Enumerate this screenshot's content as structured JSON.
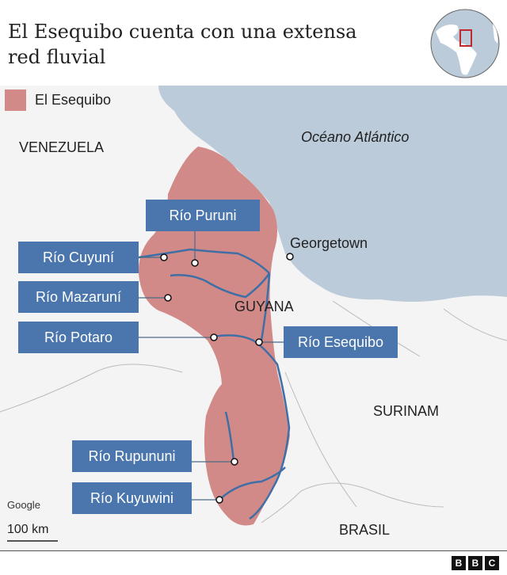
{
  "title": "El Esequibo cuenta con una extensa red fluvial",
  "legend": {
    "label": "El Esequibo",
    "color": "#d28a88"
  },
  "places": {
    "venezuela": "VENEZUELA",
    "ocean": "Océano Atlántico",
    "georgetown": "Georgetown",
    "guyana": "GUYANA",
    "surinam": "SURINAM",
    "brasil": "BRASIL"
  },
  "rivers": [
    "Río Puruni",
    "Río Cuyuní",
    "Río Mazaruní",
    "Río Potaro",
    "Río Esequibo",
    "Río Rupununi",
    "Río Kuyuwini"
  ],
  "attribution": "Google",
  "scale": "100 km",
  "brand": [
    "B",
    "B",
    "C"
  ],
  "colors": {
    "ocean": "#bccbd9",
    "region": "#d28a88",
    "label_box": "#4a76ad",
    "river": "#3f6fa6",
    "locator_box": "#c0282d"
  }
}
